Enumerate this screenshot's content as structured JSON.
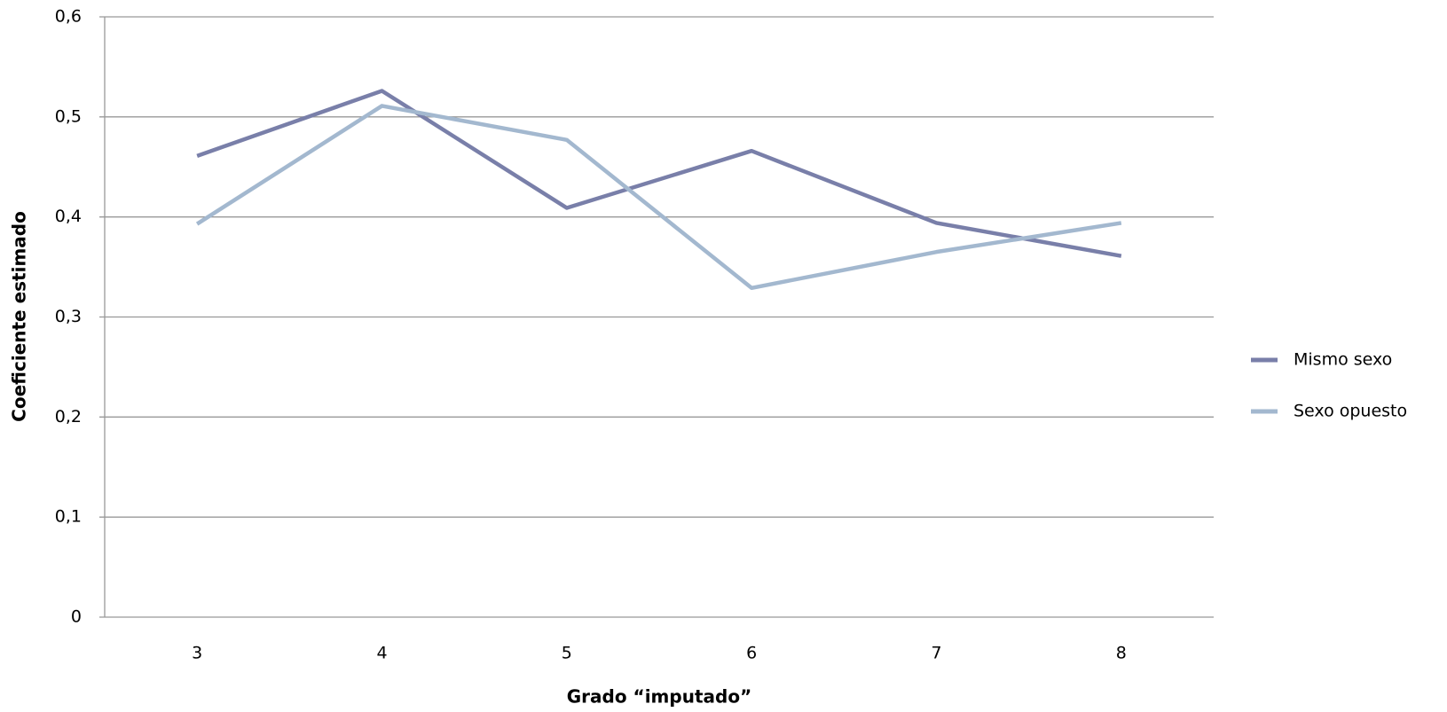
{
  "chart_data": {
    "type": "line",
    "x_label": "Grado “imputado”",
    "y_label": "Coeficiente estimado",
    "categories": [
      "3",
      "4",
      "5",
      "6",
      "7",
      "8"
    ],
    "series": [
      {
        "name": "Mismo sexo",
        "color": "#797fa9",
        "values": [
          0.461,
          0.526,
          0.409,
          0.466,
          0.394,
          0.361
        ]
      },
      {
        "name": "Sexo opuesto",
        "color": "#a3b8cf",
        "values": [
          0.393,
          0.511,
          0.477,
          0.329,
          0.365,
          0.394
        ]
      }
    ],
    "ylim": [
      0,
      0.6
    ],
    "yticks": [
      0,
      {
        "value": 0.1,
        "label": "0,1"
      },
      {
        "value": 0.2,
        "label": "0,2"
      },
      {
        "value": 0.3,
        "label": "0,3"
      },
      {
        "value": 0.4,
        "label": "0,4"
      },
      {
        "value": 0.5,
        "label": "0,5"
      },
      {
        "value": 0.6,
        "label": "0,6"
      }
    ],
    "grid": true,
    "legend": "right"
  }
}
